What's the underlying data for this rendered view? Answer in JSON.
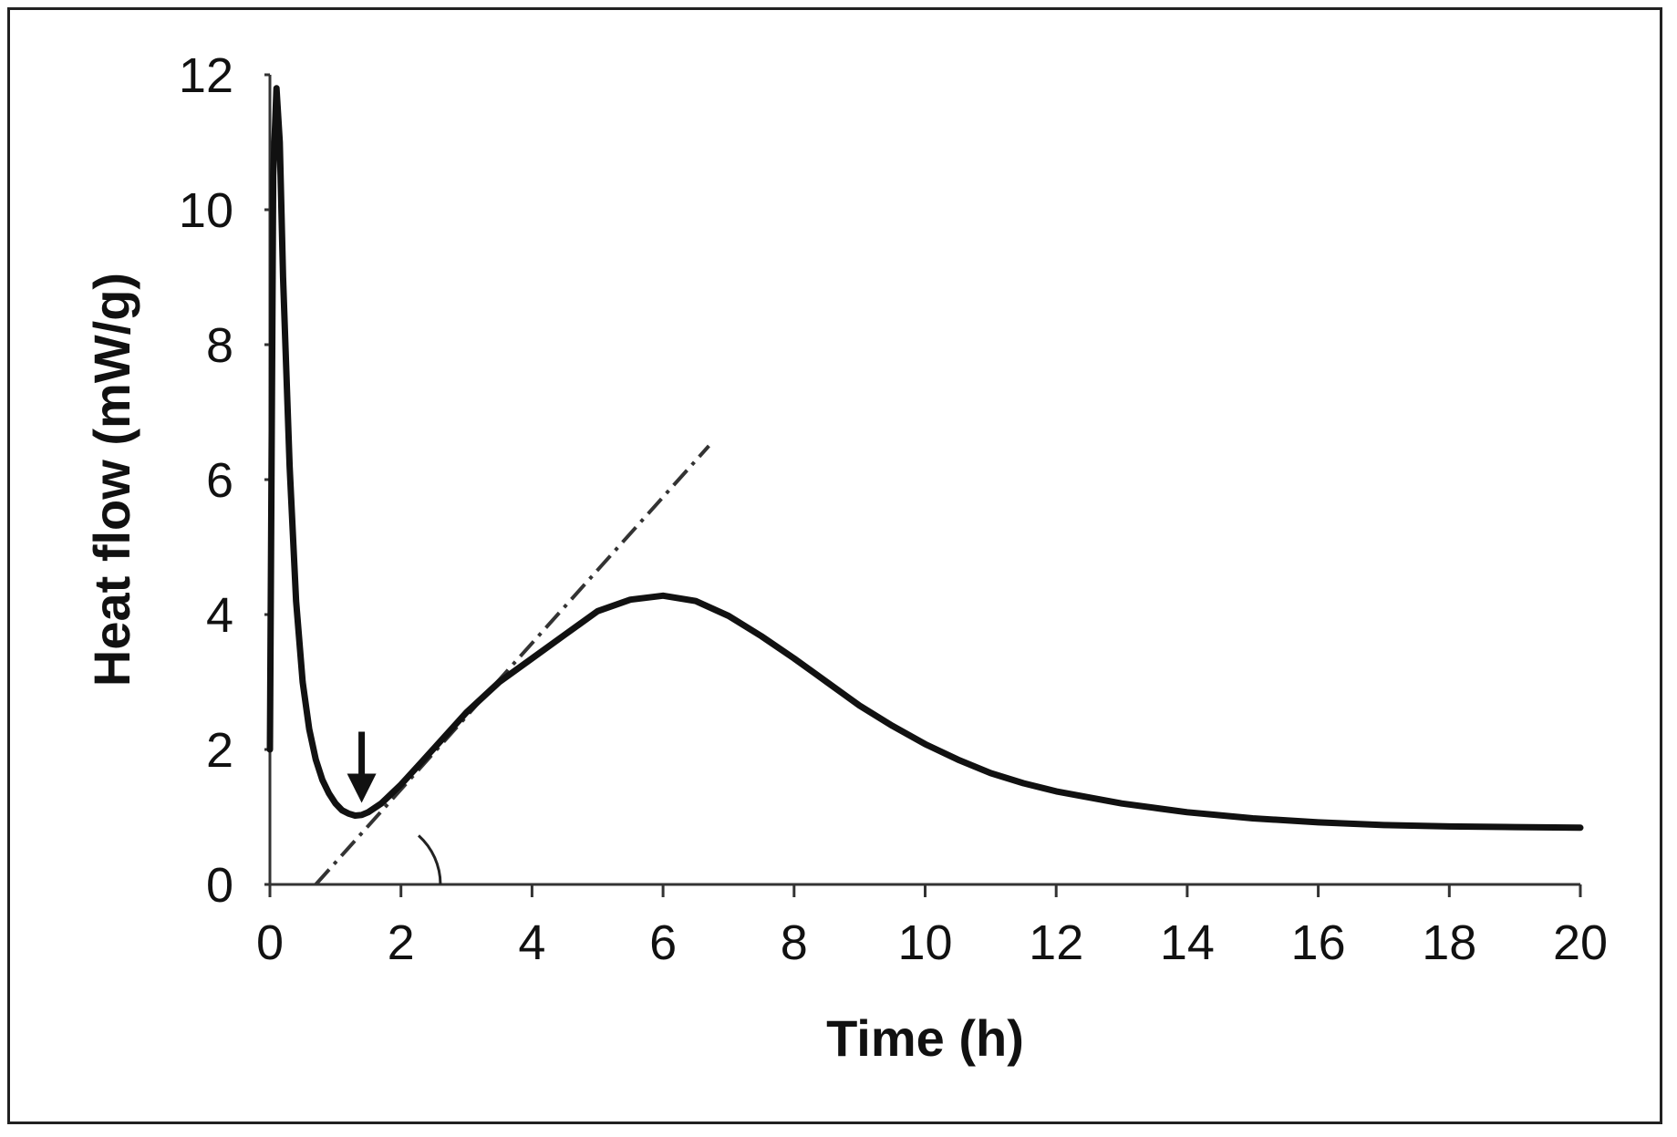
{
  "chart_data": {
    "type": "line",
    "xlabel": "Time (h)",
    "ylabel": "Heat flow (mW/g)",
    "xlim": [
      0,
      20
    ],
    "ylim": [
      0,
      12
    ],
    "xticks": [
      0,
      2,
      4,
      6,
      8,
      10,
      12,
      14,
      16,
      18,
      20
    ],
    "yticks": [
      0,
      2,
      4,
      6,
      8,
      10,
      12
    ],
    "grid": false,
    "legend": "none",
    "line_color": "#111111",
    "series": [
      {
        "x": [
          0.0,
          0.05,
          0.1,
          0.15,
          0.2,
          0.3,
          0.4,
          0.5,
          0.6,
          0.7,
          0.8,
          0.9,
          1.0,
          1.1,
          1.2,
          1.3,
          1.4,
          1.5,
          1.7,
          2.0,
          2.3,
          2.6,
          3.0,
          3.5,
          4.0,
          4.5,
          5.0,
          5.5,
          6.0,
          6.5,
          7.0,
          7.5,
          8.0,
          8.5,
          9.0,
          9.5,
          10.0,
          10.5,
          11.0,
          11.5,
          12.0,
          13.0,
          14.0,
          15.0,
          16.0,
          17.0,
          18.0,
          19.0,
          20.0
        ],
        "y": [
          2.0,
          10.5,
          11.8,
          11.0,
          9.0,
          6.2,
          4.2,
          3.0,
          2.3,
          1.85,
          1.55,
          1.35,
          1.2,
          1.1,
          1.05,
          1.02,
          1.03,
          1.07,
          1.2,
          1.48,
          1.8,
          2.12,
          2.55,
          3.0,
          3.35,
          3.7,
          4.05,
          4.22,
          4.28,
          4.2,
          3.98,
          3.68,
          3.35,
          3.0,
          2.65,
          2.35,
          2.08,
          1.85,
          1.65,
          1.5,
          1.38,
          1.2,
          1.07,
          0.98,
          0.92,
          0.88,
          0.86,
          0.85,
          0.84
        ]
      }
    ],
    "annotations": {
      "tangent_line": {
        "x": [
          0.7,
          6.7
        ],
        "y": [
          0.0,
          6.5
        ],
        "style": "dash-dot"
      },
      "arrow_target": {
        "x": 1.4,
        "y": 1.02
      },
      "angle_arc_center": {
        "x": 1.6,
        "y": 0.0
      }
    }
  }
}
